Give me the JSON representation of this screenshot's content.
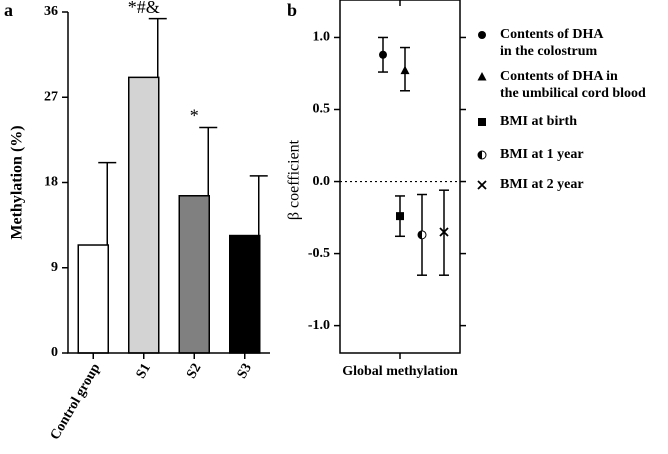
{
  "chart_data": [
    {
      "type": "bar",
      "panel": "a",
      "ylabel": "Methylation (%)",
      "categories": [
        "Control group",
        "S1",
        "S2",
        "S3"
      ],
      "values": [
        11.4,
        29.1,
        16.6,
        12.4
      ],
      "errors": [
        8.7,
        6.2,
        7.2,
        6.3
      ],
      "annotations": [
        null,
        "*#&",
        "*",
        null
      ],
      "colors": [
        "#ffffff",
        "#d3d3d3",
        "#808080",
        "#000000"
      ],
      "ylim": [
        0,
        36
      ],
      "yticks": [
        0,
        9,
        18,
        27,
        36
      ]
    },
    {
      "type": "dotplot",
      "panel": "b",
      "ylabel": "β coefficient",
      "categories": [
        "Global methylation"
      ],
      "ylim": [
        -1.19,
        1.26
      ],
      "yticks": [
        {
          "value": 1,
          "label": "1.0"
        },
        {
          "value": 0.5,
          "label": "0.5"
        },
        {
          "value": 0,
          "label": "0.0"
        },
        {
          "value": -0.5,
          "label": "-0.5"
        },
        {
          "value": -1,
          "label": "-1.0"
        }
      ],
      "reference_line": 0,
      "series": [
        {
          "name": "Contents of DHA\nin the colostrum",
          "marker": "circle",
          "values": [
            0.88
          ],
          "lower": [
            0.76
          ],
          "upper": [
            1.0
          ]
        },
        {
          "name": "Contents of DHA in\nthe umbilical cord blood",
          "marker": "triangle",
          "values": [
            0.77
          ],
          "lower": [
            0.63
          ],
          "upper": [
            0.93
          ]
        },
        {
          "name": "BMI at birth",
          "marker": "square",
          "values": [
            -0.24
          ],
          "lower": [
            -0.38
          ],
          "upper": [
            -0.1
          ]
        },
        {
          "name": "BMI at 1 year",
          "marker": "half-circle",
          "values": [
            -0.37
          ],
          "lower": [
            -0.65
          ],
          "upper": [
            -0.09
          ]
        },
        {
          "name": "BMI at 2 year",
          "marker": "cross",
          "values": [
            -0.35
          ],
          "lower": [
            -0.65
          ],
          "upper": [
            -0.06
          ]
        }
      ]
    }
  ]
}
